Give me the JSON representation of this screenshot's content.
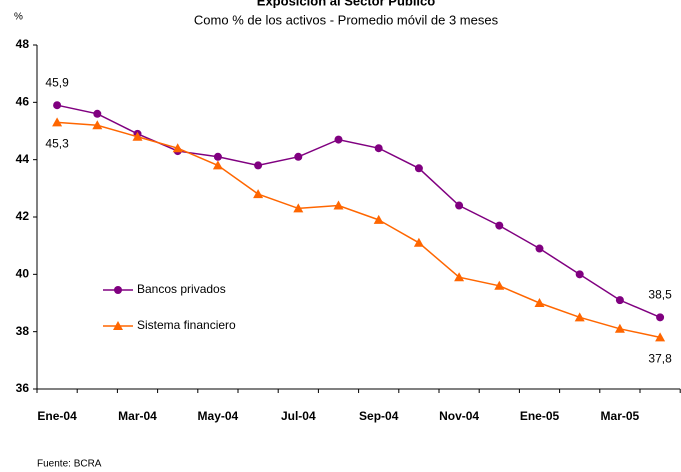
{
  "chart_data": {
    "type": "line",
    "title": "Exposición al Sector Público",
    "subtitle": "Como % de los activos - Promedio móvil de 3 meses",
    "y_label": "%",
    "source": "Fuente: BCRA",
    "categories": [
      "Ene-04",
      null,
      "Mar-04",
      null,
      "May-04",
      null,
      "Jul-04",
      null,
      "Sep-04",
      null,
      "Nov-04",
      null,
      "Ene-05",
      null,
      "Mar-05",
      null
    ],
    "series": [
      {
        "name": "Bancos privados",
        "color": "#800080",
        "marker": "circle",
        "values": [
          45.9,
          45.6,
          44.9,
          44.3,
          44.1,
          43.8,
          44.1,
          44.7,
          44.4,
          43.7,
          42.4,
          41.7,
          40.9,
          40.0,
          39.1,
          38.5
        ],
        "value_labels": [
          "45,9",
          null,
          null,
          null,
          null,
          null,
          null,
          null,
          null,
          null,
          null,
          null,
          null,
          null,
          null,
          "38,5"
        ]
      },
      {
        "name": "Sistema financiero",
        "color": "#ff6600",
        "marker": "triangle",
        "values": [
          45.3,
          45.2,
          44.8,
          44.4,
          43.8,
          42.8,
          42.3,
          42.4,
          41.9,
          41.1,
          39.9,
          39.6,
          39.0,
          38.5,
          38.1,
          37.8
        ],
        "value_labels": [
          "45,3",
          null,
          null,
          null,
          null,
          null,
          null,
          null,
          null,
          null,
          null,
          null,
          null,
          null,
          null,
          "37,8"
        ]
      }
    ],
    "ylim": [
      36,
      48
    ],
    "yticks": [
      36,
      38,
      40,
      42,
      44,
      46,
      48
    ],
    "grid": false,
    "legend": "center-left"
  }
}
